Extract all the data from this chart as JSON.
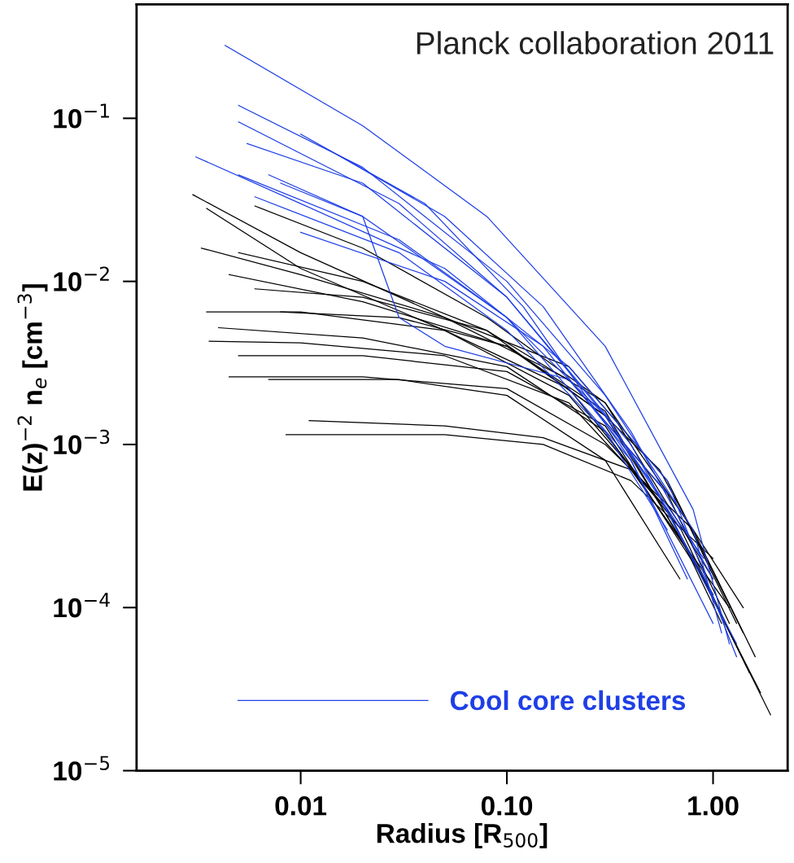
{
  "chart_data": {
    "type": "line",
    "log": "xy",
    "xlabel": "Radius [R$_{500}$]",
    "ylabel": "E(z)$^{−2}$ n$_{e}$ [cm$^{−3}$]",
    "annotations": [
      "Planck collaboration 2011"
    ],
    "xlim": [
      0.0016,
      2.3
    ],
    "ylim": [
      1e-05,
      0.5
    ],
    "xticks": [
      {
        "value": 0.01,
        "label": "0.01"
      },
      {
        "value": 0.1,
        "label": "0.10"
      },
      {
        "value": 1,
        "label": "1.00"
      }
    ],
    "yticks": [
      {
        "value": 1e-05,
        "label": "10$^{−5}$"
      },
      {
        "value": 0.0001,
        "label": "10$^{−4}$"
      },
      {
        "value": 0.001,
        "label": "10$^{−3}$"
      },
      {
        "value": 0.01,
        "label": "10$^{−2}$"
      },
      {
        "value": 0.1,
        "label": "10$^{−1}$"
      }
    ],
    "grid": false,
    "legend": "bottom",
    "marker": "none",
    "line_style": "solid",
    "series": [
      {
        "color": "#000000",
        "x": [
          0.003,
          0.01,
          0.05,
          0.2,
          0.6,
          1.2
        ],
        "values": [
          0.034,
          0.015,
          0.006,
          0.0025,
          0.0005,
          8e-05
        ]
      },
      {
        "color": "#000000",
        "x": [
          0.0035,
          0.01,
          0.05,
          0.2,
          0.7,
          1.5
        ],
        "values": [
          0.028,
          0.012,
          0.005,
          0.0022,
          0.0003,
          4e-05
        ]
      },
      {
        "color": "#000000",
        "x": [
          0.0033,
          0.01,
          0.05,
          0.2,
          0.6,
          1.4
        ],
        "values": [
          0.016,
          0.011,
          0.006,
          0.003,
          0.0006,
          7e-05
        ]
      },
      {
        "color": "#000000",
        "x": [
          0.0035,
          0.01,
          0.05,
          0.2,
          0.6,
          1.1
        ],
        "values": [
          0.0065,
          0.0065,
          0.005,
          0.002,
          0.0004,
          8e-05
        ]
      },
      {
        "color": "#000000",
        "x": [
          0.0036,
          0.01,
          0.05,
          0.2,
          0.6,
          1.7
        ],
        "values": [
          0.0043,
          0.0042,
          0.0035,
          0.0018,
          0.0004,
          3e-05
        ]
      },
      {
        "color": "#000000",
        "x": [
          0.004,
          0.02,
          0.1,
          0.3,
          0.8,
          1.9
        ],
        "values": [
          0.0052,
          0.0045,
          0.003,
          0.0012,
          0.0002,
          2.2e-05
        ]
      },
      {
        "color": "#000000",
        "x": [
          0.0045,
          0.02,
          0.1,
          0.3,
          0.8,
          1.4
        ],
        "values": [
          0.0026,
          0.0026,
          0.0022,
          0.001,
          0.0003,
          0.0001
        ]
      },
      {
        "color": "#000000",
        "x": [
          0.007,
          0.03,
          0.1,
          0.3,
          0.69
        ],
        "values": [
          0.0025,
          0.0025,
          0.002,
          0.0008,
          0.00015
        ]
      },
      {
        "color": "#000000",
        "x": [
          0.0085,
          0.05,
          0.15,
          0.4,
          1.0
        ],
        "values": [
          0.00115,
          0.00115,
          0.001,
          0.0006,
          0.0002
        ]
      },
      {
        "color": "#000000",
        "x": [
          0.011,
          0.05,
          0.15,
          0.4,
          1.2
        ],
        "values": [
          0.0014,
          0.0013,
          0.0011,
          0.0007,
          0.0001
        ]
      },
      {
        "color": "#000000",
        "x": [
          0.005,
          0.02,
          0.08,
          0.3,
          0.8,
          1.6
        ],
        "values": [
          0.015,
          0.01,
          0.005,
          0.0018,
          0.0003,
          5e-05
        ]
      },
      {
        "color": "#000000",
        "x": [
          0.006,
          0.02,
          0.08,
          0.3,
          0.55,
          0.7,
          1.3
        ],
        "values": [
          0.009,
          0.008,
          0.005,
          0.0015,
          0.0007,
          0.0004,
          8e-05
        ]
      },
      {
        "color": "#000000",
        "x": [
          0.008,
          0.03,
          0.1,
          0.3,
          0.8,
          1.5
        ],
        "values": [
          0.0065,
          0.006,
          0.004,
          0.0015,
          0.0002,
          4e-05
        ]
      },
      {
        "color": "#000000",
        "x": [
          0.005,
          0.02,
          0.1,
          0.3,
          0.9
        ],
        "values": [
          0.0035,
          0.0035,
          0.0028,
          0.0013,
          0.00015
        ]
      },
      {
        "color": "#000000",
        "x": [
          0.0045,
          0.02,
          0.1,
          0.3,
          1.0
        ],
        "values": [
          0.011,
          0.0075,
          0.004,
          0.0016,
          0.00012
        ]
      },
      {
        "color": "#000000",
        "x": [
          0.006,
          0.02,
          0.08,
          0.3,
          1.0
        ],
        "values": [
          0.029,
          0.016,
          0.006,
          0.0018,
          0.00015
        ]
      },
      {
        "name": "Cool core clusters",
        "color": "#1f3fe6",
        "x": [
          0.0043,
          0.02,
          0.08,
          0.3,
          0.8,
          1.2
        ],
        "values": [
          0.28,
          0.09,
          0.025,
          0.004,
          0.0004,
          6e-05
        ]
      },
      {
        "color": "#1f3fe6",
        "x": [
          0.0031,
          0.01,
          0.05,
          0.2,
          0.6,
          1.3
        ],
        "values": [
          0.058,
          0.03,
          0.012,
          0.003,
          0.0006,
          5e-05
        ]
      },
      {
        "color": "#1f3fe6",
        "x": [
          0.005,
          0.02,
          0.1,
          0.3,
          0.8,
          1.1
        ],
        "values": [
          0.12,
          0.05,
          0.01,
          0.002,
          0.0003,
          7e-05
        ]
      },
      {
        "color": "#1f3fe6",
        "x": [
          0.005,
          0.03,
          0.1,
          0.4,
          1.0
        ],
        "values": [
          0.095,
          0.03,
          0.008,
          0.001,
          0.00012
        ]
      },
      {
        "color": "#1f3fe6",
        "x": [
          0.0055,
          0.02,
          0.1,
          0.3,
          0.7
        ],
        "values": [
          0.07,
          0.04,
          0.008,
          0.0015,
          0.0003
        ]
      },
      {
        "color": "#1f3fe6",
        "x": [
          0.007,
          0.02,
          0.1,
          0.3,
          0.9
        ],
        "values": [
          0.045,
          0.025,
          0.006,
          0.0015,
          0.0002
        ]
      },
      {
        "color": "#1f3fe6",
        "x": [
          0.006,
          0.03,
          0.1,
          0.3,
          0.6
        ],
        "values": [
          0.033,
          0.015,
          0.005,
          0.0012,
          0.0003
        ]
      },
      {
        "color": "#1f3fe6",
        "x": [
          0.01,
          0.04,
          0.12,
          0.4,
          1.0
        ],
        "values": [
          0.08,
          0.03,
          0.007,
          0.0008,
          8e-05
        ]
      },
      {
        "color": "#1f3fe6",
        "x": [
          0.008,
          0.02,
          0.03,
          0.05,
          0.2,
          0.6
        ],
        "values": [
          0.04,
          0.025,
          0.006,
          0.004,
          0.0025,
          0.0005
        ]
      },
      {
        "color": "#1f3fe6",
        "x": [
          0.01,
          0.05,
          0.15,
          0.5,
          1.3
        ],
        "values": [
          0.02,
          0.01,
          0.004,
          0.0006,
          6e-05
        ]
      },
      {
        "color": "#1f3fe6",
        "x": [
          0.015,
          0.05,
          0.15,
          0.4,
          1.0
        ],
        "values": [
          0.06,
          0.025,
          0.007,
          0.0012,
          0.00015
        ]
      },
      {
        "color": "#1f3fe6",
        "x": [
          0.005,
          0.03,
          0.1,
          0.4,
          0.75
        ],
        "values": [
          0.045,
          0.018,
          0.006,
          0.0008,
          0.00015
        ]
      }
    ]
  }
}
